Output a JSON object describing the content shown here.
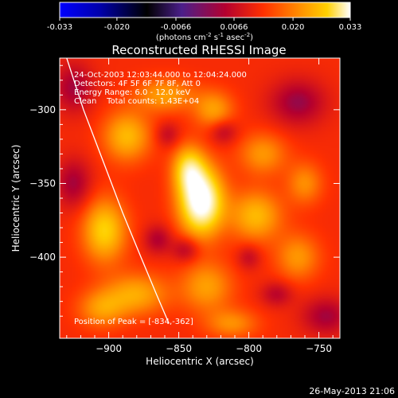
{
  "colors": {
    "background": "#000000",
    "text": "#ffffff",
    "colormap": [
      "#0000ff",
      "#000000",
      "#4b1f8a",
      "#b4002f",
      "#ff3000",
      "#ff8a00",
      "#ffd000",
      "#ffffff"
    ]
  },
  "colorbar": {
    "ticks": [
      "-0.033",
      "-0.020",
      "-0.0066",
      "0.0066",
      "0.020",
      "0.033"
    ],
    "tick_values": [
      -0.033,
      -0.02,
      -0.0066,
      0.0066,
      0.02,
      0.033
    ],
    "range": [
      -0.033,
      0.033
    ],
    "unit_label": "(photons cm",
    "unit_sup1": "-2",
    "unit_mid": " s",
    "unit_sup2": "-1",
    "unit_tail": " asec",
    "unit_sup3": "-2",
    "unit_close": ")"
  },
  "footer": {
    "timestamp": "26-May-2013 21:06"
  },
  "chart_data": {
    "type": "heatmap",
    "title": "Reconstructed RHESSI Image",
    "xlabel": "Heliocentric X (arcsec)",
    "ylabel": "Heliocentric Y (arcsec)",
    "xlim": [
      -935,
      -735
    ],
    "ylim": [
      -455,
      -265
    ],
    "xticks": [
      -900,
      -850,
      -800,
      -750
    ],
    "yticks": [
      -300,
      -350,
      -400
    ],
    "info": [
      "24-Oct-2003 12:03:44.000 to 12:04:24.000",
      "Detectors: 4F 5F 6F 7F 8F, Att 0",
      "Energy Range: 6.0 - 12.0 keV",
      "Clean    Total counts: 1.43E+04"
    ],
    "peak_label": "Position of Peak = [-834,-362]",
    "peak": [
      -834,
      -362
    ],
    "limb_curve": [
      [
        -930,
        -265
      ],
      [
        -918,
        -300
      ],
      [
        -902,
        -340
      ],
      [
        -890,
        -370
      ],
      [
        -877,
        -400
      ],
      [
        -866,
        -425
      ],
      [
        -857,
        -445
      ]
    ],
    "sources": [
      {
        "x": -834,
        "y": -362,
        "amp": 0.033,
        "sx": 11,
        "sy": 16
      },
      {
        "x": -843,
        "y": -340,
        "amp": 0.018,
        "sx": 8,
        "sy": 11
      },
      {
        "x": -903,
        "y": -382,
        "amp": 0.018,
        "sx": 11,
        "sy": 15
      },
      {
        "x": -887,
        "y": -318,
        "amp": 0.015,
        "sx": 12,
        "sy": 12
      },
      {
        "x": -795,
        "y": -372,
        "amp": 0.015,
        "sx": 13,
        "sy": 12
      },
      {
        "x": -860,
        "y": -290,
        "amp": 0.012,
        "sx": 15,
        "sy": 8
      },
      {
        "x": -825,
        "y": -300,
        "amp": 0.012,
        "sx": 10,
        "sy": 9
      },
      {
        "x": -790,
        "y": -330,
        "amp": 0.011,
        "sx": 12,
        "sy": 10
      },
      {
        "x": -765,
        "y": -400,
        "amp": 0.011,
        "sx": 11,
        "sy": 11
      },
      {
        "x": -880,
        "y": -425,
        "amp": 0.013,
        "sx": 16,
        "sy": 10
      },
      {
        "x": -830,
        "y": -420,
        "amp": 0.012,
        "sx": 13,
        "sy": 12
      },
      {
        "x": -905,
        "y": -435,
        "amp": 0.011,
        "sx": 12,
        "sy": 9
      },
      {
        "x": -760,
        "y": -350,
        "amp": 0.01,
        "sx": 9,
        "sy": 10
      },
      {
        "x": -812,
        "y": -445,
        "amp": 0.01,
        "sx": 13,
        "sy": 7
      },
      {
        "x": -765,
        "y": -295,
        "amp": -0.011,
        "sx": 14,
        "sy": 11
      },
      {
        "x": -925,
        "y": -285,
        "amp": -0.01,
        "sx": 10,
        "sy": 12
      },
      {
        "x": -925,
        "y": -350,
        "amp": -0.01,
        "sx": 9,
        "sy": 12
      },
      {
        "x": -865,
        "y": -388,
        "amp": -0.009,
        "sx": 7,
        "sy": 7
      },
      {
        "x": -845,
        "y": -395,
        "amp": -0.009,
        "sx": 7,
        "sy": 6
      },
      {
        "x": -818,
        "y": -315,
        "amp": -0.008,
        "sx": 7,
        "sy": 6
      },
      {
        "x": -745,
        "y": -440,
        "amp": -0.01,
        "sx": 12,
        "sy": 9
      },
      {
        "x": -780,
        "y": -425,
        "amp": -0.008,
        "sx": 8,
        "sy": 6
      },
      {
        "x": -800,
        "y": -400,
        "amp": -0.007,
        "sx": 6,
        "sy": 6
      },
      {
        "x": -858,
        "y": -317,
        "amp": -0.007,
        "sx": 6,
        "sy": 6
      }
    ]
  }
}
